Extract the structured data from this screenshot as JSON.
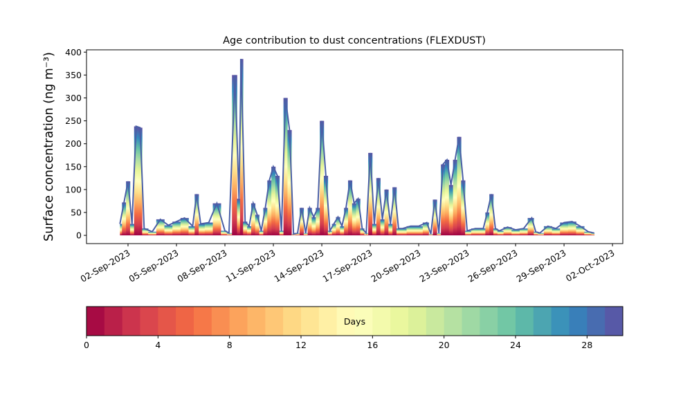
{
  "chart_data": {
    "type": "area",
    "title": "Age contribution to dust concentrations (FLEXDUST)",
    "ylabel": "Surface concentration (ng m⁻³)",
    "x": [
      "2023-09-01T12:00",
      "2023-09-01T18:00",
      "2023-09-02T00:00",
      "2023-09-02T06:00",
      "2023-09-02T12:00",
      "2023-09-02T18:00",
      "2023-09-03T00:00",
      "2023-09-03T12:00",
      "2023-09-04T00:00",
      "2023-09-04T12:00",
      "2023-09-05T00:00",
      "2023-09-05T12:00",
      "2023-09-06T00:00",
      "2023-09-06T06:00",
      "2023-09-06T12:00",
      "2023-09-07T00:00",
      "2023-09-07T12:00",
      "2023-09-08T00:00",
      "2023-09-08T06:00",
      "2023-09-08T15:00",
      "2023-09-08T21:00",
      "2023-09-09T00:00",
      "2023-09-09T06:00",
      "2023-09-09T12:00",
      "2023-09-09T18:00",
      "2023-09-10T00:00",
      "2023-09-10T06:00",
      "2023-09-10T12:00",
      "2023-09-10T18:00",
      "2023-09-11T00:00",
      "2023-09-11T06:00",
      "2023-09-11T12:00",
      "2023-09-11T18:00",
      "2023-09-12T00:00",
      "2023-09-12T06:00",
      "2023-09-12T12:00",
      "2023-09-12T18:00",
      "2023-09-13T00:00",
      "2023-09-13T06:00",
      "2023-09-13T12:00",
      "2023-09-13T18:00",
      "2023-09-14T00:00",
      "2023-09-14T06:00",
      "2023-09-14T12:00",
      "2023-09-14T18:00",
      "2023-09-15T00:00",
      "2023-09-15T06:00",
      "2023-09-15T12:00",
      "2023-09-15T18:00",
      "2023-09-16T00:00",
      "2023-09-16T06:00",
      "2023-09-16T12:00",
      "2023-09-16T18:00",
      "2023-09-17T00:00",
      "2023-09-17T06:00",
      "2023-09-17T12:00",
      "2023-09-17T18:00",
      "2023-09-18T00:00",
      "2023-09-18T06:00",
      "2023-09-18T12:00",
      "2023-09-18T18:00",
      "2023-09-19T00:00",
      "2023-09-19T12:00",
      "2023-09-20T00:00",
      "2023-09-20T12:00",
      "2023-09-20T18:00",
      "2023-09-21T00:00",
      "2023-09-21T06:00",
      "2023-09-21T12:00",
      "2023-09-21T18:00",
      "2023-09-22T00:00",
      "2023-09-22T06:00",
      "2023-09-22T12:00",
      "2023-09-22T18:00",
      "2023-09-23T00:00",
      "2023-09-23T12:00",
      "2023-09-24T00:00",
      "2023-09-24T06:00",
      "2023-09-24T12:00",
      "2023-09-24T18:00",
      "2023-09-25T00:00",
      "2023-09-25T12:00",
      "2023-09-26T00:00",
      "2023-09-26T12:00",
      "2023-09-27T00:00",
      "2023-09-27T06:00",
      "2023-09-27T12:00",
      "2023-09-28T00:00",
      "2023-09-28T12:00",
      "2023-09-29T00:00",
      "2023-09-29T12:00",
      "2023-09-30T00:00",
      "2023-09-30T12:00",
      "2023-09-30T21:00"
    ],
    "values": [
      25,
      72,
      118,
      25,
      238,
      235,
      15,
      8,
      35,
      22,
      30,
      38,
      20,
      90,
      25,
      28,
      70,
      10,
      5,
      350,
      80,
      385,
      30,
      20,
      70,
      45,
      10,
      60,
      120,
      150,
      130,
      10,
      300,
      230,
      3,
      5,
      60,
      5,
      60,
      40,
      60,
      250,
      130,
      10,
      25,
      40,
      20,
      60,
      120,
      70,
      80,
      15,
      5,
      180,
      25,
      125,
      35,
      100,
      25,
      105,
      15,
      15,
      20,
      20,
      28,
      3,
      78,
      5,
      155,
      165,
      110,
      165,
      215,
      120,
      10,
      15,
      15,
      50,
      90,
      15,
      10,
      18,
      12,
      15,
      38,
      8,
      5,
      20,
      15,
      28,
      30,
      20,
      8,
      5
    ],
    "line_color": "#4a5fa6",
    "xlim": [
      "2023-08-30T10:17:00",
      "2023-10-02T15:20:00"
    ],
    "xticks": [
      {
        "value": "2023-09-02",
        "label": "02-Sep-2023"
      },
      {
        "value": "2023-09-05",
        "label": "05-Sep-2023"
      },
      {
        "value": "2023-09-08",
        "label": "08-Sep-2023"
      },
      {
        "value": "2023-09-11",
        "label": "11-Sep-2023"
      },
      {
        "value": "2023-09-14",
        "label": "14-Sep-2023"
      },
      {
        "value": "2023-09-17",
        "label": "17-Sep-2023"
      },
      {
        "value": "2023-09-20",
        "label": "20-Sep-2023"
      },
      {
        "value": "2023-09-23",
        "label": "23-Sep-2023"
      },
      {
        "value": "2023-09-26",
        "label": "26-Sep-2023"
      },
      {
        "value": "2023-09-29",
        "label": "29-Sep-2023"
      },
      {
        "value": "2023-10-02",
        "label": "02-Oct-2023"
      }
    ],
    "ylim": [
      -18,
      405
    ],
    "yticks": [
      0,
      50,
      100,
      150,
      200,
      250,
      300,
      350,
      400
    ],
    "colorbar": {
      "label": "Days",
      "lim": [
        0,
        30
      ],
      "bins": 30,
      "ticks": [
        0,
        4,
        8,
        12,
        16,
        20,
        24,
        28
      ],
      "colors": [
        "#9e0142",
        "#d53e4f",
        "#f46d43",
        "#fdae61",
        "#fee08b",
        "#ffffbf",
        "#e6f598",
        "#abdda4",
        "#66c2a5",
        "#3288bd",
        "#5e4fa2"
      ]
    }
  }
}
